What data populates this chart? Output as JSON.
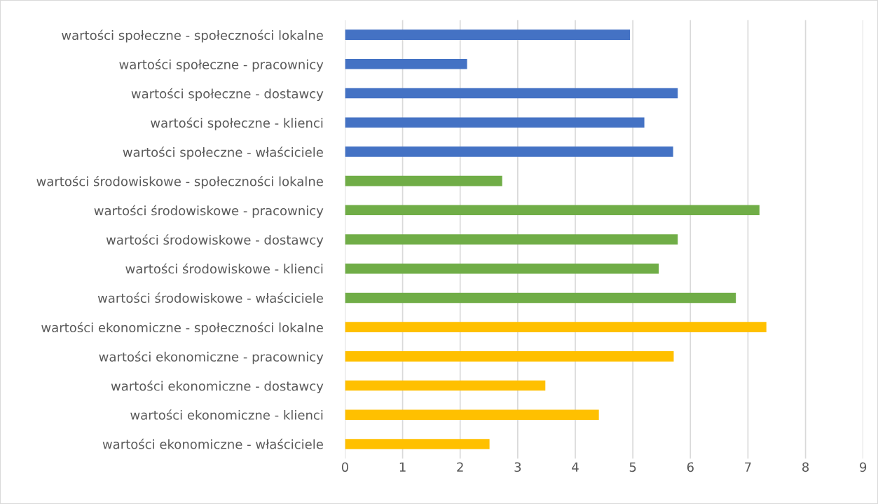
{
  "chart_data": {
    "type": "bar",
    "orientation": "horizontal",
    "categories": [
      "wartości społeczne - społeczności lokalne",
      "wartości społeczne - pracownicy",
      "wartości społeczne - dostawcy",
      "wartości społeczne - klienci",
      "wartości społeczne - właściciele",
      "wartości środowiskowe - społeczności lokalne",
      "wartości środowiskowe - pracownicy",
      "wartości środowiskowe - dostawcy",
      "wartości środowiskowe - klienci",
      "wartości środowiskowe - właściciele",
      "wartości ekonomiczne - społeczności lokalne",
      "wartości ekonomiczne - pracownicy",
      "wartości ekonomiczne - dostawcy",
      "wartości ekonomiczne - klienci",
      "wartości ekonomiczne - właściciele"
    ],
    "values": [
      4.95,
      2.12,
      5.78,
      5.2,
      5.7,
      2.73,
      7.2,
      5.78,
      5.45,
      6.79,
      7.32,
      5.71,
      3.48,
      4.41,
      2.51
    ],
    "colors": [
      "#4472c4",
      "#4472c4",
      "#4472c4",
      "#4472c4",
      "#4472c4",
      "#70ad47",
      "#70ad47",
      "#70ad47",
      "#70ad47",
      "#70ad47",
      "#ffc000",
      "#ffc000",
      "#ffc000",
      "#ffc000",
      "#ffc000"
    ],
    "xlim": [
      0,
      9
    ],
    "xticks": [
      0,
      1,
      2,
      3,
      4,
      5,
      6,
      7,
      8,
      9
    ],
    "grid": "x",
    "legend": false
  }
}
